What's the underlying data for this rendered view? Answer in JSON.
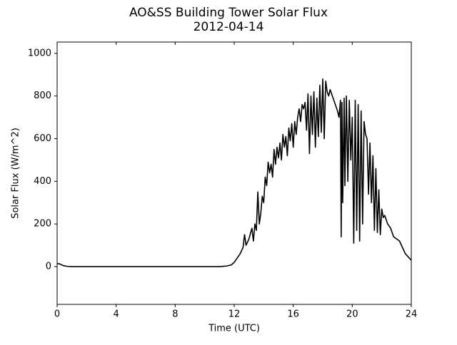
{
  "chart_data": {
    "type": "line",
    "title": "AO&SS Building Tower Solar Flux",
    "subtitle": "2012-04-14",
    "x_label": "Time (UTC)",
    "y_label": "Solar Flux (W/m^2)",
    "color": "#000000",
    "x": [
      0,
      0.2,
      0.4,
      0.7,
      1,
      2,
      3,
      4,
      5,
      6,
      7,
      8,
      9,
      10,
      11,
      11.5,
      11.8,
      12,
      12.2,
      12.4,
      12.6,
      12.7,
      12.8,
      13,
      13.2,
      13.3,
      13.4,
      13.5,
      13.6,
      13.7,
      13.8,
      13.9,
      14,
      14.1,
      14.2,
      14.3,
      14.4,
      14.5,
      14.6,
      14.7,
      14.8,
      14.9,
      15,
      15.1,
      15.2,
      15.3,
      15.4,
      15.5,
      15.6,
      15.7,
      15.8,
      15.9,
      16,
      16.1,
      16.2,
      16.3,
      16.4,
      16.5,
      16.6,
      16.7,
      16.8,
      16.9,
      17,
      17.1,
      17.2,
      17.3,
      17.4,
      17.5,
      17.6,
      17.7,
      17.8,
      17.9,
      18,
      18.1,
      18.2,
      18.3,
      18.4,
      18.5,
      18.6,
      18.7,
      18.8,
      18.9,
      19,
      19.1,
      19.2,
      19.25,
      19.3,
      19.35,
      19.45,
      19.5,
      19.6,
      19.7,
      19.8,
      19.9,
      20,
      20.1,
      20.2,
      20.3,
      20.4,
      20.5,
      20.6,
      20.7,
      20.8,
      20.9,
      21,
      21.1,
      21.2,
      21.3,
      21.4,
      21.5,
      21.6,
      21.7,
      21.8,
      21.9,
      22,
      22.1,
      22.2,
      22.4,
      22.6,
      22.8,
      23,
      23.2,
      23.4,
      23.6,
      24
    ],
    "values": [
      15,
      12,
      5,
      1,
      0,
      0,
      0,
      0,
      0,
      0,
      0,
      0,
      0,
      0,
      0,
      3,
      8,
      20,
      40,
      60,
      90,
      150,
      100,
      130,
      180,
      120,
      200,
      170,
      350,
      200,
      250,
      330,
      300,
      420,
      380,
      490,
      440,
      480,
      420,
      550,
      480,
      560,
      510,
      580,
      500,
      620,
      560,
      610,
      520,
      650,
      590,
      670,
      560,
      680,
      620,
      700,
      740,
      680,
      760,
      740,
      770,
      640,
      810,
      530,
      800,
      620,
      820,
      560,
      790,
      610,
      850,
      630,
      880,
      600,
      870,
      820,
      800,
      830,
      810,
      790,
      770,
      750,
      730,
      700,
      780,
      140,
      770,
      300,
      790,
      380,
      800,
      400,
      780,
      500,
      700,
      110,
      780,
      170,
      760,
      120,
      730,
      200,
      680,
      620,
      600,
      340,
      580,
      300,
      520,
      170,
      460,
      160,
      360,
      150,
      270,
      230,
      240,
      200,
      180,
      140,
      130,
      120,
      90,
      60,
      30
    ],
    "xlim": [
      0,
      24
    ],
    "xticks": [
      0,
      4,
      8,
      12,
      16,
      20,
      24
    ],
    "ylim": [
      -177,
      1053
    ],
    "yticks": [
      0,
      200,
      400,
      600,
      800,
      1000
    ]
  }
}
